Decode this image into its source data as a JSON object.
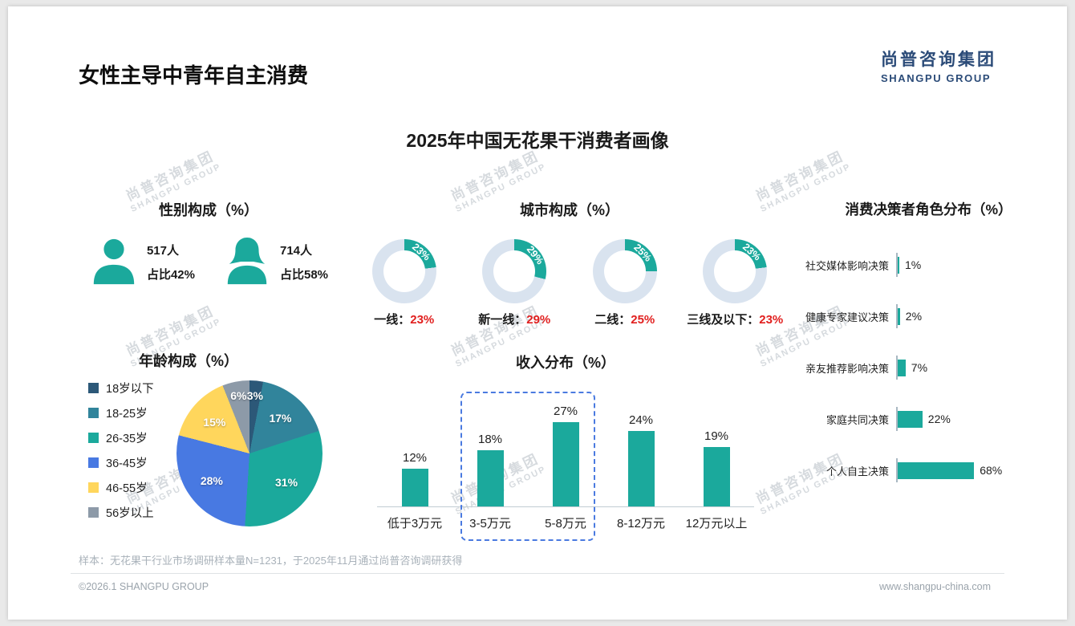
{
  "page": {
    "title": "女性主导中青年自主消费",
    "subtitle": "2025年中国无花果干消费者画像",
    "footnote": "样本：无花果干行业市场调研样本量N=1231，于2025年11月通过尚普咨询调研获得",
    "footer_left": "©2026.1 SHANGPU GROUP",
    "footer_right": "www.shangpu-china.com"
  },
  "logo": {
    "cn": "尚普咨询集团",
    "en": "SHANGPU GROUP"
  },
  "watermark": {
    "cn": "尚普咨询集团",
    "en": "SHANGPU GROUP"
  },
  "colors": {
    "teal": "#1ba99c",
    "red": "#e1201f",
    "navy": "#2b4b78",
    "donut_rest": "#d9e3ef",
    "highlight": "#4a7ae0"
  },
  "chart_data": [
    {
      "id": "gender",
      "type": "pictogram",
      "title": "性别构成（%）",
      "items": [
        {
          "label": "male",
          "count": "517人",
          "share": "占比42%"
        },
        {
          "label": "female",
          "count": "714人",
          "share": "占比58%"
        }
      ]
    },
    {
      "id": "city",
      "type": "donut",
      "title": "城市构成（%）",
      "items": [
        {
          "label": "一线：",
          "value": 23,
          "value_label": "23%"
        },
        {
          "label": "新一线：",
          "value": 29,
          "value_label": "29%"
        },
        {
          "label": "二线：",
          "value": 25,
          "value_label": "25%"
        },
        {
          "label": "三线及以下：",
          "value": 23,
          "value_label": "23%"
        }
      ]
    },
    {
      "id": "decision",
      "type": "bar-horizontal",
      "title": "消费决策者角色分布（%）",
      "categories": [
        "社交媒体影响决策",
        "健康专家建议决策",
        "亲友推荐影响决策",
        "家庭共同决策",
        "个人自主决策"
      ],
      "values": [
        1,
        2,
        7,
        22,
        68
      ],
      "value_labels": [
        "1%",
        "2%",
        "7%",
        "22%",
        "68%"
      ],
      "xlim": [
        0,
        100
      ]
    },
    {
      "id": "age",
      "type": "pie",
      "title": "年龄构成（%）",
      "categories": [
        "18岁以下",
        "18-25岁",
        "26-35岁",
        "36-45岁",
        "46-55岁",
        "56岁以上"
      ],
      "values": [
        3,
        17,
        31,
        28,
        15,
        6
      ],
      "value_labels": [
        "3%",
        "17%",
        "31%",
        "28%",
        "15%",
        "6%"
      ],
      "colors": [
        "#2c5878",
        "#31849b",
        "#1ba99c",
        "#4879e2",
        "#ffd65c",
        "#8d9aa8"
      ]
    },
    {
      "id": "income",
      "type": "bar",
      "title": "收入分布（%）",
      "categories": [
        "低于3万元",
        "3-5万元",
        "5-8万元",
        "8-12万元",
        "12万元以上"
      ],
      "values": [
        12,
        18,
        27,
        24,
        19
      ],
      "value_labels": [
        "12%",
        "18%",
        "27%",
        "24%",
        "19%"
      ],
      "highlight_range": [
        1,
        2
      ],
      "ylim": [
        0,
        30
      ]
    }
  ]
}
